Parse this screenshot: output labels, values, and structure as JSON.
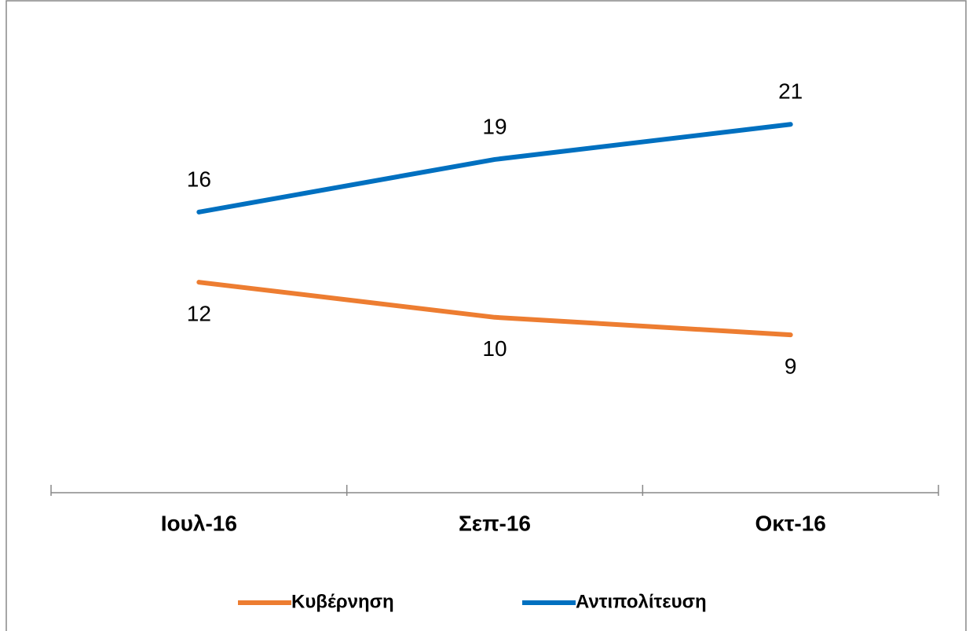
{
  "chart_data": {
    "type": "line",
    "categories": [
      "Ιουλ-16",
      "Σεπ-16",
      "Οκτ-16"
    ],
    "series": [
      {
        "name": "Κυβέρνηση",
        "color": "#ED7D31",
        "values": [
          12,
          10,
          9
        ],
        "label_position": "below"
      },
      {
        "name": "Αντιπολίτευση",
        "color": "#0070C0",
        "values": [
          16,
          19,
          21
        ],
        "label_position": "above"
      }
    ],
    "ylim": [
      0,
      25
    ],
    "legend": "bottom"
  }
}
